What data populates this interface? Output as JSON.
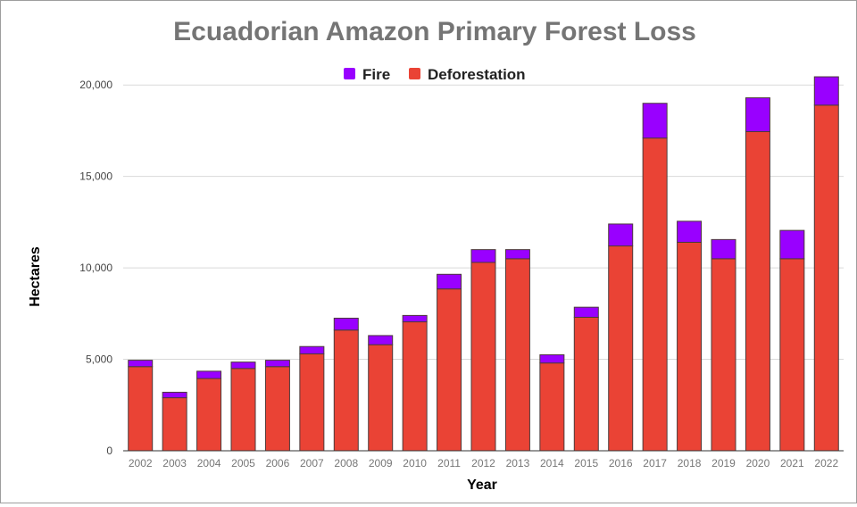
{
  "chart_data": {
    "type": "bar",
    "stacked": true,
    "title": "Ecuadorian Amazon Primary Forest Loss",
    "xlabel": "Year",
    "ylabel": "Hectares",
    "ylim": [
      0,
      20500
    ],
    "yticks": [
      0,
      5000,
      10000,
      15000,
      20000
    ],
    "ytick_labels": [
      "0",
      "5,000",
      "10,000",
      "15,000",
      "20,000"
    ],
    "grid": true,
    "legend_position": "top-center",
    "categories": [
      "2002",
      "2003",
      "2004",
      "2005",
      "2006",
      "2007",
      "2008",
      "2009",
      "2010",
      "2011",
      "2012",
      "2013",
      "2014",
      "2015",
      "2016",
      "2017",
      "2018",
      "2019",
      "2020",
      "2021",
      "2022"
    ],
    "series": [
      {
        "name": "Deforestation",
        "color": "#ea4335",
        "values": [
          4600,
          2900,
          3950,
          4500,
          4600,
          5300,
          6600,
          5800,
          7050,
          8850,
          10300,
          10500,
          4800,
          7300,
          11200,
          17100,
          11400,
          10500,
          17450,
          10500,
          18900
        ]
      },
      {
        "name": "Fire",
        "color": "#9900ff",
        "values": [
          350,
          300,
          400,
          350,
          350,
          400,
          650,
          500,
          350,
          800,
          700,
          500,
          450,
          550,
          1200,
          1900,
          1150,
          1050,
          1850,
          1550,
          1550
        ]
      }
    ]
  }
}
